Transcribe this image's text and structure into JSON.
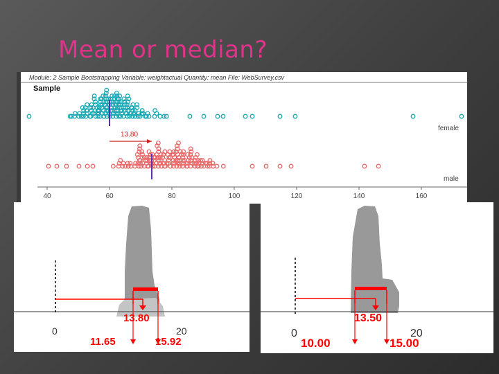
{
  "slide": {
    "title": "Mean or median?"
  },
  "top_plot": {
    "header": "Module: 2 Sample Bootstrapping     Variable: weightactual     Quantity: mean     File: WebSurvey.csv",
    "sample_label": "Sample",
    "groups": [
      {
        "name": "female",
        "color": "#1aa8b4"
      },
      {
        "name": "male",
        "color": "#e86a6a"
      }
    ],
    "diff_label": "13.80",
    "x_ticks": [
      "40",
      "60",
      "80",
      "100",
      "120",
      "140",
      "160"
    ]
  },
  "left_plot": {
    "zero_label": "0",
    "twenty_label": "20",
    "estimate_label": "13.80",
    "ci_lower": "11.65",
    "ci_upper": "15.92"
  },
  "right_plot": {
    "zero_label": "0",
    "twenty_label": "20",
    "estimate_label": "13.50",
    "ci_lower": "10.00",
    "ci_upper": "15.00"
  },
  "colors": {
    "title": "#e0338a",
    "accent": "#ff0000",
    "female": "#1aa8b4",
    "male": "#e86a6a",
    "median_line": "#5a2fb0"
  }
}
